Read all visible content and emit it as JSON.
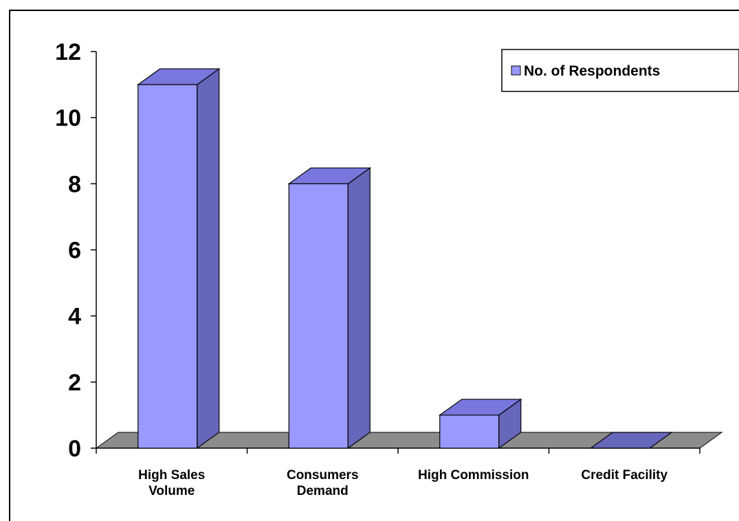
{
  "chart_data": {
    "type": "bar",
    "categories": [
      [
        "High Sales",
        "Volume"
      ],
      [
        "Consumers",
        "Demand"
      ],
      [
        "High Commission"
      ],
      [
        "Credit Facility"
      ]
    ],
    "series": [
      {
        "name": "No. of Respondents",
        "values": [
          11,
          8,
          1,
          0
        ]
      }
    ],
    "ylim": [
      0,
      12
    ],
    "yticks": [
      0,
      2,
      4,
      6,
      8,
      10,
      12
    ],
    "grid": false,
    "legend_position": "top-right",
    "style": "3d-column"
  },
  "colors": {
    "bar_front": "#9999ff",
    "bar_side": "#6666bb",
    "bar_top": "#7777dd",
    "floor": "#8c8c8c",
    "axis": "#000000"
  }
}
